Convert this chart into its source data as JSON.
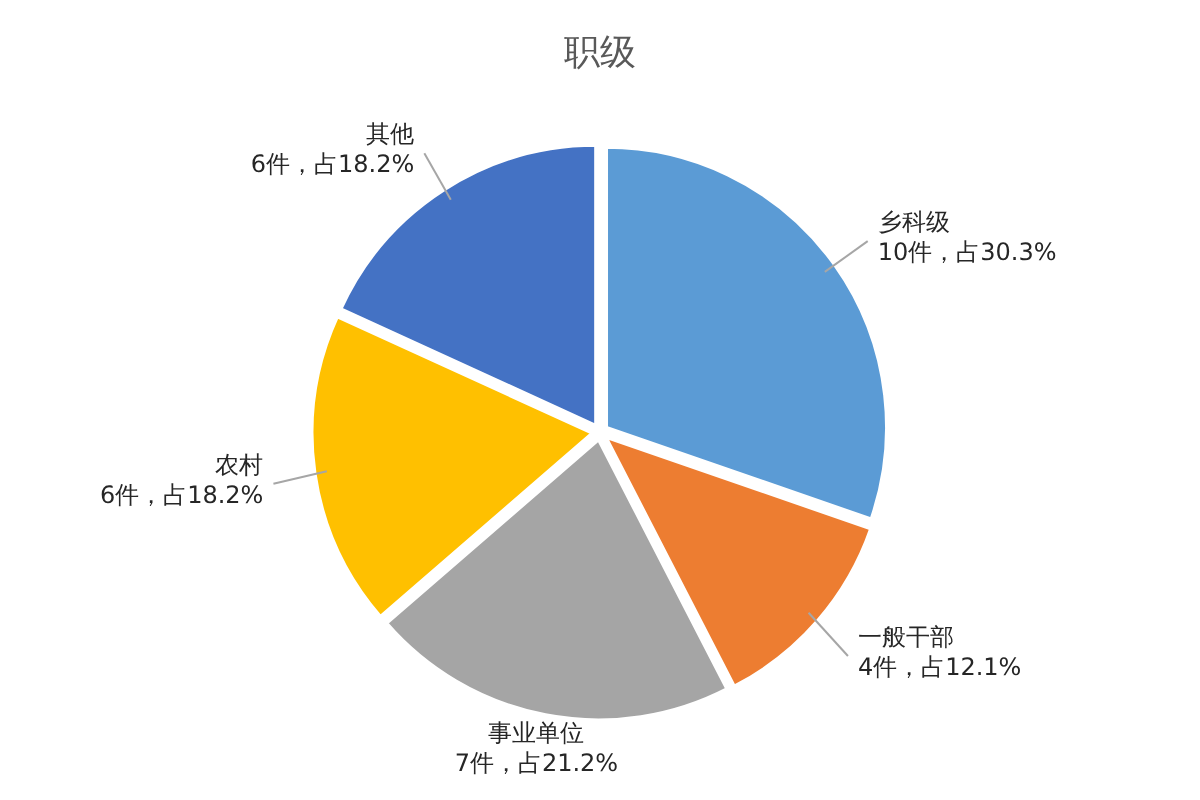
{
  "chart_data": {
    "type": "pie",
    "title": "职级",
    "categories": [
      "乡科级",
      "一般干部",
      "事业单位",
      "农村",
      "其他"
    ],
    "values": [
      10,
      4,
      7,
      6,
      6
    ],
    "colors": [
      "#5b9bd5",
      "#ed7d31",
      "#a5a5a5",
      "#ffc000",
      "#4472c4"
    ],
    "value_labels": [
      "10件，占30.3%",
      "4件，占12.1%",
      "7件，占21.2%",
      "6件，占18.2%",
      "6件，占18.2%"
    ]
  }
}
